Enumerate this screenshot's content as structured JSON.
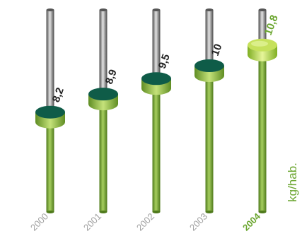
{
  "chart_data": {
    "type": "bar",
    "categories": [
      "2000",
      "2001",
      "2002",
      "2003",
      "2004"
    ],
    "values": [
      8.2,
      8.9,
      9.5,
      10,
      10.8
    ],
    "value_labels": [
      "8,2",
      "8,9",
      "9,5",
      "10",
      "10,8"
    ],
    "highlight_index": 4,
    "unit_label": "kg/hab.",
    "colors": {
      "stem_green": "#7aa535",
      "stem_green_dark": "#4f7a1c",
      "stem_grey": "#b8b8b8",
      "stem_grey_dark": "#5a5a5a",
      "disc_top": "#0f5c48",
      "disc_side": "#8fba45",
      "highlight_top": "#c6e15c",
      "highlight_side": "#9ccc38",
      "value_text": "#222222",
      "highlight_text": "#6aa52e",
      "year_text": "#a0a0a0",
      "unit_text": "#6aa52e"
    }
  }
}
